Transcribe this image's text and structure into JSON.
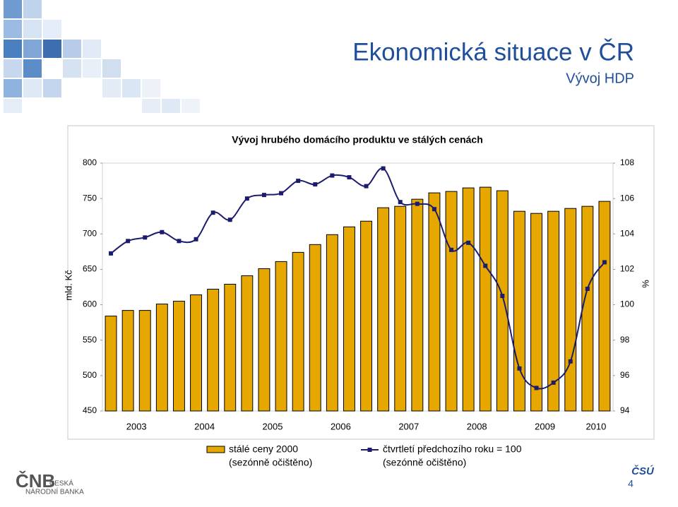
{
  "header": {
    "title": "Ekonomická situace v ČR",
    "subtitle": "Vývoj HDP"
  },
  "chart_data": {
    "type": "bar_line",
    "title": "Vývoj hrubého domácího produktu ve stálých cenách",
    "y_label": "mld. Kč",
    "y2_label": "%",
    "categories": [
      "2003",
      null,
      null,
      null,
      "2004",
      null,
      null,
      null,
      "2005",
      null,
      null,
      null,
      "2006",
      null,
      null,
      null,
      "2007",
      null,
      null,
      null,
      "2008",
      null,
      null,
      null,
      "2009",
      null,
      null,
      null,
      "2010",
      null
    ],
    "ylim": [
      450,
      800
    ],
    "yticks": [
      450,
      500,
      550,
      600,
      650,
      700,
      750,
      800
    ],
    "y2lim": [
      94,
      108
    ],
    "y2ticks": [
      94,
      96,
      98,
      100,
      102,
      104,
      106,
      108
    ],
    "series": [
      {
        "name": "stálé ceny 2000",
        "note": "(sezónně očištěno)",
        "type": "bar",
        "color": "#e6a800",
        "values": [
          584,
          592,
          592,
          601,
          605,
          614,
          622,
          629,
          641,
          651,
          661,
          674,
          685,
          699,
          710,
          718,
          737,
          739,
          749,
          758,
          760,
          765,
          766,
          761,
          732,
          729,
          732,
          736,
          739,
          746
        ]
      },
      {
        "name": "čtvrtletí předchozího roku = 100",
        "note": "(sezónně očištěno)",
        "type": "line",
        "axis": "y2",
        "color": "#1c1c6e",
        "values": [
          102.9,
          103.6,
          103.8,
          104.1,
          103.6,
          103.7,
          105.2,
          104.8,
          106.0,
          106.2,
          106.3,
          107.0,
          106.8,
          107.3,
          107.2,
          106.7,
          107.7,
          105.8,
          105.7,
          105.4,
          103.1,
          103.5,
          102.2,
          100.5,
          96.4,
          95.3,
          95.6,
          96.8,
          100.9,
          102.4
        ]
      }
    ]
  },
  "footer": {
    "cnb_logo": "ČNB",
    "cnb_name_1": "ČESKÁ",
    "cnb_name_2": "NÁRODNÍ BANKA",
    "csu_logo": "ČSÚ",
    "page": "4"
  }
}
